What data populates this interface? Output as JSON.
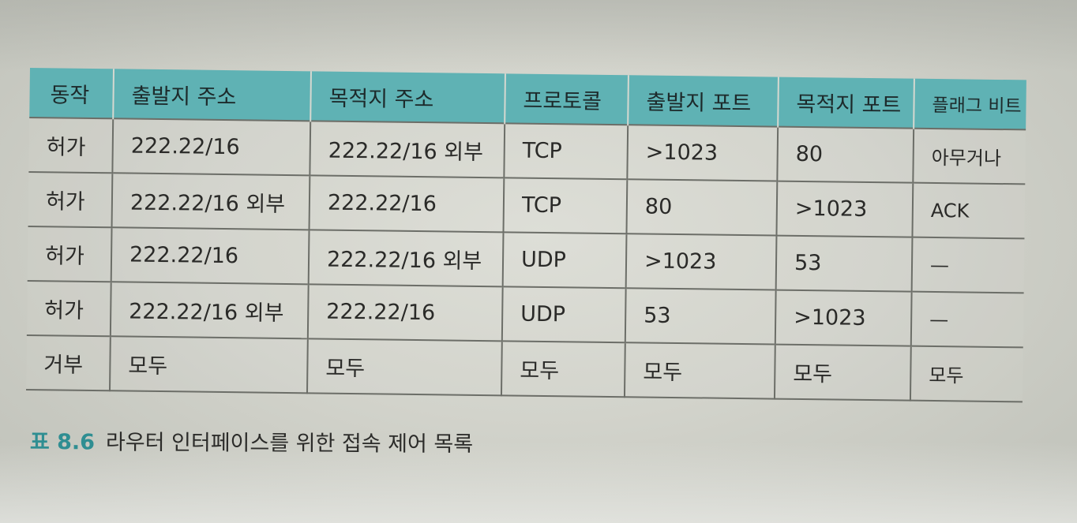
{
  "table": {
    "headers": [
      "동작",
      "출발지 주소",
      "목적지 주소",
      "프로토콜",
      "출발지 포트",
      "목적지 포트",
      "플래그 비트"
    ],
    "rows": [
      [
        "허가",
        "222.22/16",
        "222.22/16 외부",
        "TCP",
        ">1023",
        "80",
        "아무거나"
      ],
      [
        "허가",
        "222.22/16 외부",
        "222.22/16",
        "TCP",
        "80",
        ">1023",
        "ACK"
      ],
      [
        "허가",
        "222.22/16",
        "222.22/16 외부",
        "UDP",
        ">1023",
        "53",
        "—"
      ],
      [
        "허가",
        "222.22/16 외부",
        "222.22/16",
        "UDP",
        "53",
        ">1023",
        "—"
      ],
      [
        "거부",
        "모두",
        "모두",
        "모두",
        "모두",
        "모두",
        "모두"
      ]
    ]
  },
  "caption": {
    "number": "표 8.6",
    "text": "라우터 인터페이스를 위한 접속 제어 목록"
  },
  "colors": {
    "header_bg": "#5fb2b4",
    "caption_number": "#2f8e92"
  }
}
